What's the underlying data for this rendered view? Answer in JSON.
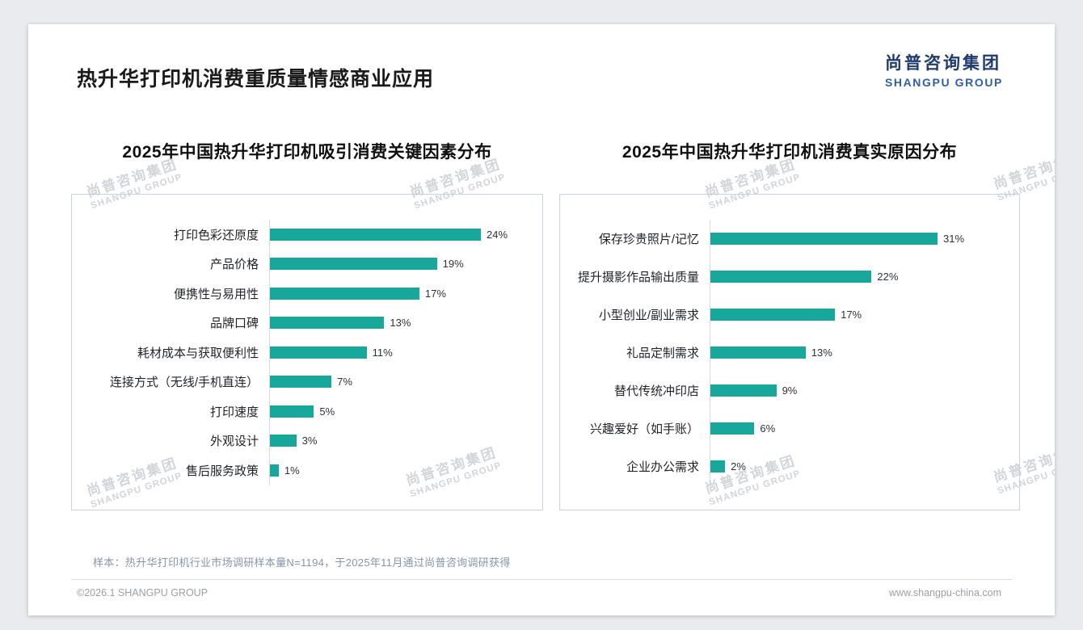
{
  "header": {
    "title": "热升华打印机消费重质量情感商业应用",
    "logo_cn": "尚普咨询集团",
    "logo_en": "SHANGPU GROUP"
  },
  "watermark": {
    "line1": "尚普咨询集团",
    "line2": "SHANGPU GROUP"
  },
  "chart_data": [
    {
      "type": "bar",
      "orientation": "horizontal",
      "title": "2025年中国热升华打印机吸引消费关键因素分布",
      "categories": [
        "打印色彩还原度",
        "产品价格",
        "便携性与易用性",
        "品牌口碑",
        "耗材成本与获取便利性",
        "连接方式（无线/手机直连）",
        "打印速度",
        "外观设计",
        "售后服务政策"
      ],
      "values": [
        24,
        19,
        17,
        13,
        11,
        7,
        5,
        3,
        1
      ],
      "unit": "%",
      "bar_color": "#18a79b",
      "xlim": [
        0,
        26
      ],
      "grid": false,
      "legend": "none"
    },
    {
      "type": "bar",
      "orientation": "horizontal",
      "title": "2025年中国热升华打印机消费真实原因分布",
      "categories": [
        "保存珍贵照片/记忆",
        "提升摄影作品输出质量",
        "小型创业/副业需求",
        "礼品定制需求",
        "替代传统冲印店",
        "兴趣爱好（如手账）",
        "企业办公需求"
      ],
      "values": [
        31,
        22,
        17,
        13,
        9,
        6,
        2
      ],
      "unit": "%",
      "bar_color": "#18a79b",
      "xlim": [
        0,
        33
      ],
      "grid": false,
      "legend": "none"
    }
  ],
  "footer": {
    "note": "样本：热升华打印机行业市场调研样本量N=1194，于2025年11月通过尚普咨询调研获得",
    "copyright": "©2026.1 SHANGPU GROUP",
    "website": "www.shangpu-china.com"
  },
  "colors": {
    "accent_teal": "#18a79b",
    "logo_navy": "#1e3a6e",
    "logo_blue": "#2e5ea8",
    "note_text": "#8496aa",
    "page_background": "#e9ebee"
  }
}
